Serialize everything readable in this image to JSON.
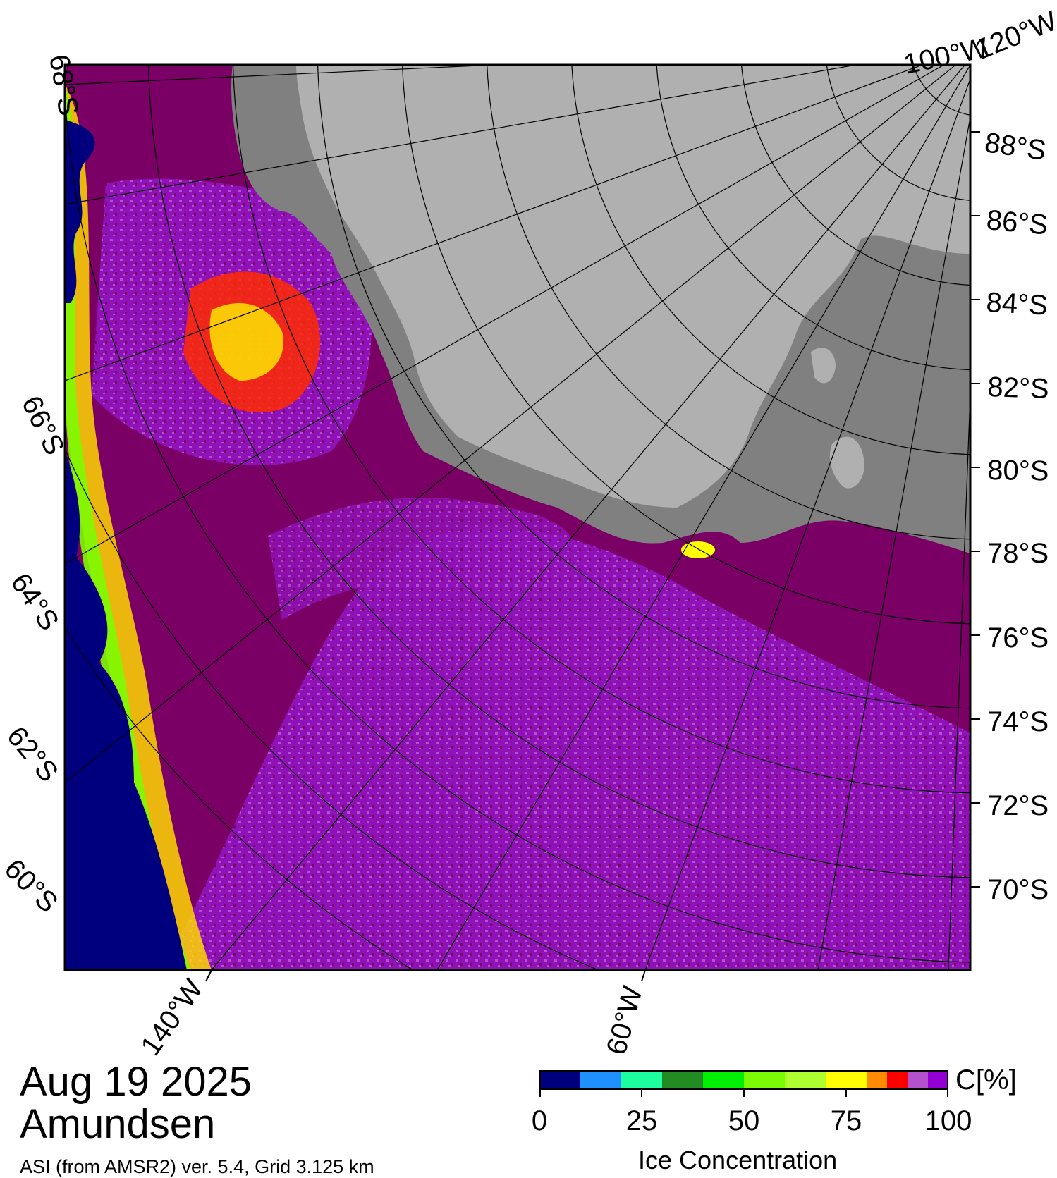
{
  "title": {
    "date": "Aug 19 2025",
    "region": "Amundsen",
    "source": "ASI (from AMSR2) ver. 5.4,  Grid 3.125 km"
  },
  "map": {
    "lat_labels_right": [
      "88°S",
      "86°S",
      "84°S",
      "82°S",
      "80°S",
      "78°S",
      "76°S",
      "74°S",
      "72°S",
      "70°S"
    ],
    "lat_labels_left": [
      "68°S",
      "66°S",
      "64°S",
      "62°S",
      "60°S"
    ],
    "lon_labels_bottom": [
      "140°W",
      "160°W"
    ],
    "lon_labels_top": [
      "100°W",
      "120°W"
    ],
    "colors": {
      "open_water": "#00007f",
      "full_ice": "#7a0066",
      "high_ice": "#9900cc",
      "land": "#b0b0b0",
      "ice_shelf": "#808080"
    }
  },
  "colorbar": {
    "unit": "C[%]",
    "title": "Ice Concentration",
    "ticks": [
      "0",
      "25",
      "50",
      "75",
      "100"
    ],
    "colors": [
      "#00007f",
      "#1e90ff",
      "#1effa0",
      "#228b22",
      "#00ee00",
      "#7cfc00",
      "#adff2f",
      "#ffff00",
      "#ff8c00",
      "#ff0000",
      "#b452cd",
      "#9400d3"
    ]
  }
}
